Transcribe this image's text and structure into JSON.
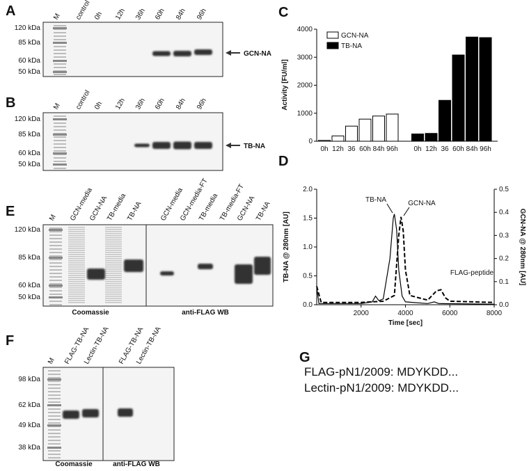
{
  "panels": {
    "A": {
      "label": "A",
      "lanes": [
        "M",
        "control",
        "0h",
        "12h",
        "36h",
        "60h",
        "84h",
        "96h"
      ],
      "markers": [
        "120 kDa",
        "85 kDa",
        "60 kDa",
        "50 kDa"
      ],
      "arrow_label": "GCN-NA"
    },
    "B": {
      "label": "B",
      "lanes": [
        "M",
        "control",
        "0h",
        "12h",
        "36h",
        "60h",
        "84h",
        "96h"
      ],
      "markers": [
        "120 kDa",
        "85 kDa",
        "60 kDa",
        "50 kDa"
      ],
      "arrow_label": "TB-NA"
    },
    "E": {
      "label": "E",
      "lanes": [
        "M",
        "GCN-media",
        "GCN-NA",
        "TB-media",
        "TB-NA",
        "GCN-media",
        "GCN-media-FT",
        "TB-media",
        "TB-media-FT",
        "GCN-NA",
        "TB-NA"
      ],
      "markers": [
        "120 kDa",
        "85 kDa",
        "60 kDa",
        "50 kDa"
      ],
      "sections": [
        "Coomassie",
        "anti-FLAG WB"
      ]
    },
    "F": {
      "label": "F",
      "lanes": [
        "M",
        "FLAG-TB-NA",
        "Lectin-TB-NA",
        "FLAG-TB-NA",
        "Lectin-TB-NA"
      ],
      "markers": [
        "98 kDa",
        "62 kDa",
        "49 kDa",
        "38 kDa"
      ],
      "sections": [
        "Coomassie",
        "anti-FLAG WB"
      ]
    },
    "G": {
      "label": "G",
      "lines": [
        "FLAG-pN1/2009: MDYKDD...",
        "Lectin-pN1/2009: MDYKDD..."
      ]
    }
  },
  "chart_data": [
    {
      "type": "bar",
      "label": "C",
      "y_label": "Activity [FU/ml]",
      "categories": [
        "0h",
        "12h",
        "36",
        "60h",
        "84h",
        "96h"
      ],
      "series": [
        {
          "name": "GCN-NA",
          "color": "#ffffff",
          "values": [
            30,
            190,
            540,
            790,
            900,
            970
          ]
        },
        {
          "name": "TB-NA",
          "color": "#000000",
          "values": [
            260,
            280,
            1460,
            3080,
            3720,
            3700
          ]
        }
      ],
      "ylim": [
        0,
        4000
      ],
      "yticks": [
        0,
        1000,
        2000,
        3000,
        4000
      ],
      "legend": "top-left"
    },
    {
      "type": "line",
      "label": "D",
      "x_label": "Time [sec]",
      "y_label": "TB-NA @ 280nm [AU]",
      "y2_label": "GCN-NA @ 280nm [AU]",
      "annotations": [
        "TB-NA",
        "GCN-NA",
        "FLAG-peptide"
      ],
      "xlim": [
        0,
        8000
      ],
      "xticks": [
        2000,
        4000,
        6000,
        8000
      ],
      "ylim": [
        0,
        2
      ],
      "yticks": [
        {
          "value": 0,
          "label": "0.0"
        },
        0.5,
        {
          "value": 1,
          "label": "1.0"
        },
        1.5,
        {
          "value": 2,
          "label": "2.0"
        }
      ],
      "y2lim": [
        0,
        0.5
      ],
      "y2ticks": [
        {
          "value": 0,
          "label": "0.0"
        },
        0.1,
        0.2,
        0.3,
        0.4,
        0.5
      ],
      "series": [
        {
          "name": "TB-NA",
          "color": "#000000",
          "dash": false,
          "x": [
            0,
            100,
            2000,
            2500,
            2650,
            2800,
            3000,
            3300,
            3450,
            3500,
            3600,
            3700,
            3850,
            4000,
            5000,
            5300,
            5500,
            8000
          ],
          "values": [
            0.3,
            0.02,
            0.02,
            0.05,
            0.15,
            0.07,
            0.1,
            0.8,
            1.5,
            1.57,
            1.3,
            0.6,
            0.15,
            0.05,
            0.02,
            0.05,
            0.02,
            0.01
          ]
        },
        {
          "name": "GCN-NA",
          "color": "#000000",
          "dash": true,
          "axis": "y2",
          "x": [
            0,
            200,
            2000,
            3000,
            3500,
            3700,
            3800,
            3900,
            4000,
            4200,
            5000,
            5400,
            5600,
            5800,
            6000,
            8000
          ],
          "values": [
            0.08,
            0.01,
            0.01,
            0.015,
            0.04,
            0.3,
            0.38,
            0.32,
            0.15,
            0.04,
            0.02,
            0.06,
            0.065,
            0.03,
            0.015,
            0.01
          ]
        }
      ]
    }
  ]
}
